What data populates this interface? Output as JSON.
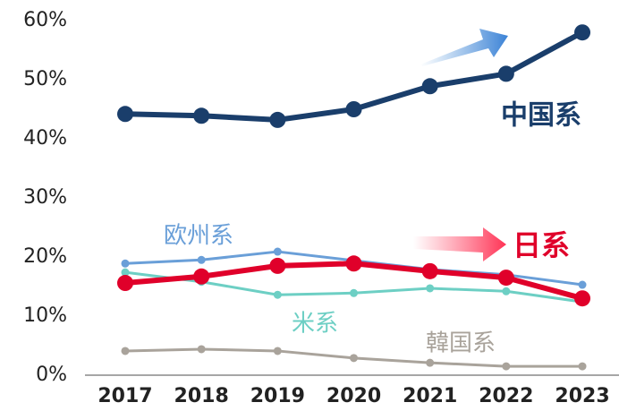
{
  "chart_data": {
    "type": "line",
    "categories": [
      "2017",
      "2018",
      "2019",
      "2020",
      "2021",
      "2022",
      "2023"
    ],
    "series": [
      {
        "name": "欧州系",
        "color": "#6a9fd8",
        "values": [
          18.9,
          19.5,
          20.9,
          19.4,
          17.9,
          17.0,
          15.3
        ]
      },
      {
        "name": "米系",
        "color": "#6dcfc4",
        "values": [
          17.4,
          15.8,
          13.6,
          13.9,
          14.7,
          14.2,
          12.4
        ]
      },
      {
        "name": "韓国系",
        "color": "#a9a39b",
        "values": [
          4.1,
          4.4,
          4.1,
          2.9,
          2.1,
          1.5,
          1.5
        ]
      },
      {
        "name": "日系",
        "color": "#e0002a",
        "values": [
          15.6,
          16.7,
          18.5,
          18.9,
          17.6,
          16.5,
          13.0
        ]
      },
      {
        "name": "中国系",
        "color": "#1a3e6b",
        "values": [
          44.2,
          43.9,
          43.2,
          45.0,
          48.9,
          51.0,
          58.0
        ]
      }
    ],
    "ylim": [
      0,
      60
    ],
    "yticks": [
      {
        "value": 0,
        "label": "0%"
      },
      {
        "value": 10,
        "label": "10%"
      },
      {
        "value": 20,
        "label": "20%"
      },
      {
        "value": 30,
        "label": "30%"
      },
      {
        "value": 40,
        "label": "40%"
      },
      {
        "value": 50,
        "label": "50%"
      },
      {
        "value": 60,
        "label": "60%"
      }
    ]
  }
}
